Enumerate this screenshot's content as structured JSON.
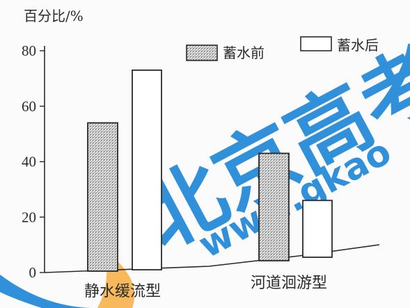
{
  "chart_data": {
    "type": "bar",
    "ylabel": "百分比/%",
    "categories": [
      "静水缓流型",
      "河道洄游型"
    ],
    "series": [
      {
        "name": "蓄水前",
        "values": [
          54,
          43
        ],
        "fill": "hatched"
      },
      {
        "name": "蓄水后",
        "values": [
          73,
          26
        ],
        "fill": "white"
      }
    ],
    "ylim": [
      0,
      80
    ],
    "yticks": [
      0,
      20,
      40,
      60,
      80
    ],
    "legend_position": "top-right",
    "grid": false
  },
  "watermark": {
    "text_cn": "北京高考",
    "text_url": "www.gkao",
    "color_blue": "#1a84d6",
    "color_orange": "#f6b24a"
  },
  "colors": {
    "ink": "#2a2a2a",
    "hatch_bg": "#e3e3e3"
  }
}
